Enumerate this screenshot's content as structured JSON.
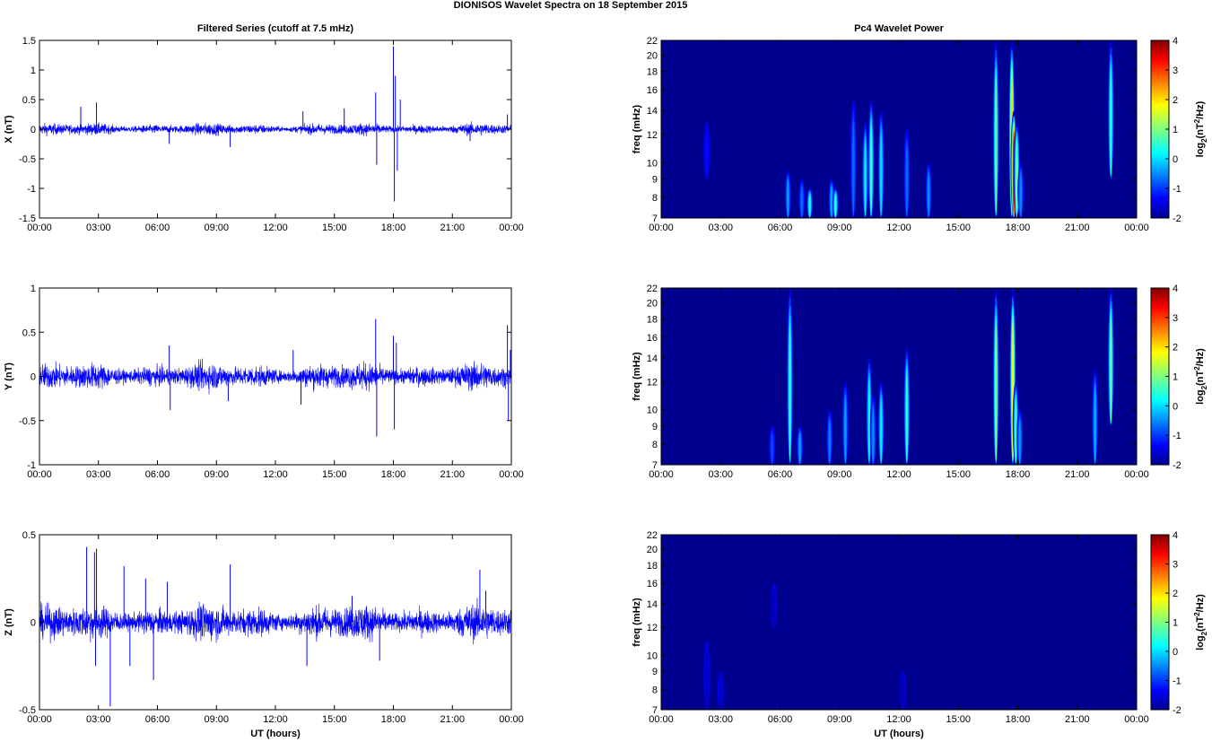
{
  "figure": {
    "title": "DIONISOS Wavelet Spectra on 18 September 2015"
  },
  "colors": {
    "series": "#0000ff",
    "background": "#00008f",
    "axis": "#000000"
  },
  "chart_data": [
    {
      "type": "line",
      "title": "Filtered Series (cutoff at 7.5 mHz)",
      "ylabel": "X (nT)",
      "xlabel": "",
      "xlim": [
        0,
        24
      ],
      "ylim": [
        -1.5,
        1.5
      ],
      "xticks": [
        "00:00",
        "03:00",
        "06:00",
        "09:00",
        "12:00",
        "15:00",
        "18:00",
        "21:00",
        "00:00"
      ],
      "yticks": [
        "1.5",
        "1",
        "0.5",
        "0",
        "-0.5",
        "-1",
        "-1.5"
      ],
      "noise_amplitude_nT": 0.06,
      "spikes": [
        [
          2.1,
          0.38
        ],
        [
          2.9,
          0.45
        ],
        [
          6.6,
          -0.25
        ],
        [
          9.7,
          -0.3
        ],
        [
          13.4,
          0.3
        ],
        [
          15.5,
          0.35
        ],
        [
          17.1,
          0.62
        ],
        [
          17.15,
          -0.6
        ],
        [
          18.0,
          1.4
        ],
        [
          18.05,
          -1.22
        ],
        [
          18.1,
          0.9
        ],
        [
          18.2,
          -0.7
        ],
        [
          18.35,
          0.5
        ],
        [
          21.9,
          -0.2
        ],
        [
          23.8,
          0.25
        ]
      ],
      "series": [
        {
          "values_description_only": true
        }
      ]
    },
    {
      "type": "heatmap",
      "title": "Pc4 Wavelet Power",
      "ylabel": "freq (mHz)",
      "xlabel": "",
      "xlim": [
        0,
        24
      ],
      "ylim_mHz": [
        7,
        22
      ],
      "yscale": "log",
      "xticks": [
        "00:00",
        "03:00",
        "06:00",
        "09:00",
        "12:00",
        "15:00",
        "18:00",
        "21:00",
        "00:00"
      ],
      "yticks": [
        "22",
        "20",
        "18",
        "16",
        "14",
        "12",
        "10",
        "9",
        "8",
        "7"
      ],
      "colorbar": {
        "label": "log2(nT2/Hz)",
        "range": [
          -2,
          4
        ],
        "ticks": [
          "4",
          "3",
          "2",
          "1",
          "0",
          "-1",
          "-2"
        ]
      },
      "events": [
        [
          2.3,
          9,
          13,
          -1.2
        ],
        [
          6.4,
          7,
          9.5,
          -0.3
        ],
        [
          7.1,
          7,
          9,
          -0.6
        ],
        [
          7.5,
          7,
          8.5,
          0.4
        ],
        [
          8.6,
          7,
          9,
          -0.2
        ],
        [
          8.8,
          7,
          8.5,
          0.5
        ],
        [
          9.7,
          7,
          15,
          -0.6
        ],
        [
          10.3,
          7,
          13,
          0.2
        ],
        [
          10.6,
          7,
          15,
          0.6
        ],
        [
          11.1,
          7,
          14,
          0.1
        ],
        [
          12.4,
          7,
          12.5,
          -0.6
        ],
        [
          13.5,
          7,
          10,
          -0.4
        ],
        [
          16.9,
          7,
          22,
          0.8
        ],
        [
          17.7,
          7,
          22,
          2.0
        ],
        [
          17.8,
          7,
          14,
          3.4
        ],
        [
          17.95,
          7,
          13,
          1.0
        ],
        [
          18.15,
          7,
          10,
          -0.4
        ],
        [
          22.7,
          9,
          22,
          0.5
        ]
      ]
    },
    {
      "type": "line",
      "title": "",
      "ylabel": "Y (nT)",
      "xlabel": "",
      "xlim": [
        0,
        24
      ],
      "ylim": [
        -1,
        1
      ],
      "xticks": [
        "00:00",
        "03:00",
        "06:00",
        "09:00",
        "12:00",
        "15:00",
        "18:00",
        "21:00",
        "00:00"
      ],
      "yticks": [
        "1",
        "0.5",
        "0",
        "-0.5",
        "-1"
      ],
      "noise_amplitude_nT": 0.09,
      "spikes": [
        [
          6.6,
          0.35
        ],
        [
          6.65,
          -0.38
        ],
        [
          9.6,
          -0.28
        ],
        [
          12.9,
          0.3
        ],
        [
          13.3,
          -0.32
        ],
        [
          17.1,
          0.65
        ],
        [
          17.15,
          -0.68
        ],
        [
          18.0,
          0.46
        ],
        [
          18.05,
          -0.6
        ],
        [
          18.15,
          0.38
        ],
        [
          23.8,
          0.58
        ],
        [
          23.85,
          -0.5
        ],
        [
          23.95,
          0.3
        ]
      ],
      "series": [
        {
          "values_description_only": true
        }
      ]
    },
    {
      "type": "heatmap",
      "title": "",
      "ylabel": "freq (mHz)",
      "xlabel": "",
      "xlim": [
        0,
        24
      ],
      "ylim_mHz": [
        7,
        22
      ],
      "yscale": "log",
      "xticks": [
        "00:00",
        "03:00",
        "06:00",
        "09:00",
        "12:00",
        "15:00",
        "18:00",
        "21:00",
        "00:00"
      ],
      "yticks": [
        "22",
        "20",
        "18",
        "16",
        "14",
        "12",
        "10",
        "9",
        "8",
        "7"
      ],
      "colorbar": {
        "label": "log2(nT2/Hz)",
        "range": [
          -2,
          4
        ],
        "ticks": [
          "4",
          "3",
          "2",
          "1",
          "0",
          "-1",
          "-2"
        ]
      },
      "events": [
        [
          5.6,
          7,
          9,
          -0.8
        ],
        [
          6.5,
          7,
          22,
          0.5
        ],
        [
          7.0,
          7,
          9,
          -0.3
        ],
        [
          8.5,
          7,
          10,
          -0.5
        ],
        [
          9.3,
          7,
          12,
          -0.3
        ],
        [
          10.5,
          7,
          14,
          0.3
        ],
        [
          10.7,
          7,
          11,
          -0.4
        ],
        [
          11.1,
          7,
          12,
          0.2
        ],
        [
          12.4,
          7,
          15,
          0.5
        ],
        [
          16.9,
          7,
          22,
          1.0
        ],
        [
          17.75,
          7,
          22,
          1.8
        ],
        [
          17.9,
          7,
          12,
          0.6
        ],
        [
          18.1,
          7,
          10,
          -0.3
        ],
        [
          21.9,
          7,
          13,
          -0.2
        ],
        [
          22.7,
          9,
          22,
          0.8
        ]
      ]
    },
    {
      "type": "line",
      "title": "",
      "ylabel": "Z (nT)",
      "xlabel": "UT (hours)",
      "xlim": [
        0,
        24
      ],
      "ylim": [
        -0.5,
        0.5
      ],
      "xticks": [
        "00:00",
        "03:00",
        "06:00",
        "09:00",
        "12:00",
        "15:00",
        "18:00",
        "21:00",
        "00:00"
      ],
      "yticks": [
        "0.5",
        "0",
        "-0.5"
      ],
      "noise_amplitude_nT": 0.06,
      "spikes": [
        [
          2.4,
          0.43
        ],
        [
          2.8,
          0.4
        ],
        [
          2.85,
          -0.25
        ],
        [
          2.9,
          0.42
        ],
        [
          3.6,
          -0.48
        ],
        [
          4.3,
          0.32
        ],
        [
          4.6,
          -0.25
        ],
        [
          5.4,
          0.25
        ],
        [
          5.8,
          -0.33
        ],
        [
          6.5,
          0.23
        ],
        [
          9.7,
          0.33
        ],
        [
          13.6,
          -0.25
        ],
        [
          15.9,
          0.15
        ],
        [
          17.3,
          -0.22
        ],
        [
          22.4,
          0.3
        ],
        [
          22.7,
          0.18
        ]
      ],
      "series": [
        {
          "values_description_only": true
        }
      ]
    },
    {
      "type": "heatmap",
      "title": "",
      "ylabel": "freq (mHz)",
      "xlabel": "UT (hours)",
      "xlim": [
        0,
        24
      ],
      "ylim_mHz": [
        7,
        22
      ],
      "yscale": "log",
      "xticks": [
        "00:00",
        "03:00",
        "06:00",
        "09:00",
        "12:00",
        "15:00",
        "18:00",
        "21:00",
        "00:00"
      ],
      "yticks": [
        "22",
        "20",
        "18",
        "16",
        "14",
        "12",
        "10",
        "9",
        "8",
        "7"
      ],
      "colorbar": {
        "label": "log2(nT2/Hz)",
        "range": [
          -2,
          4
        ],
        "ticks": [
          "4",
          "3",
          "2",
          "1",
          "0",
          "-1",
          "-2"
        ]
      },
      "events": [
        [
          2.3,
          7,
          11,
          -1.6
        ],
        [
          3.0,
          7,
          9,
          -1.6
        ],
        [
          5.7,
          12,
          16,
          -1.7
        ],
        [
          12.2,
          7,
          9,
          -1.7
        ]
      ]
    }
  ]
}
